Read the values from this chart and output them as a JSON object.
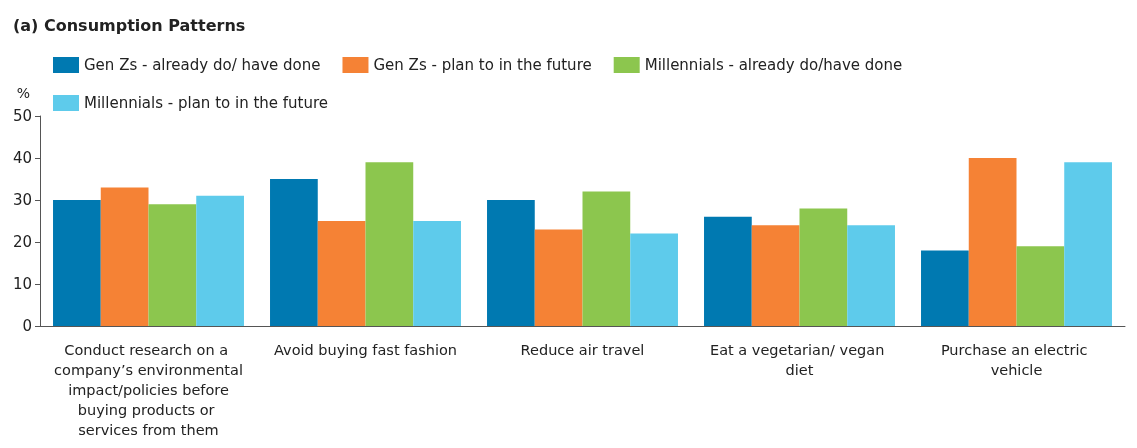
{
  "chart_data": {
    "type": "bar",
    "title": "(a) Consumption Patterns",
    "ylabel": "%",
    "categories": [
      "Conduct research on a company’s environmental impact/policies before buying products or services from them",
      "Avoid buying fast fashion",
      "Reduce air travel",
      "Eat a vegetarian/ vegan diet",
      "Purchase an electric vehicle"
    ],
    "series": [
      {
        "name": "Gen Zs - already do/ have done",
        "color": "#0079b1",
        "values": [
          30,
          35,
          30,
          26,
          18
        ]
      },
      {
        "name": "Gen Zs - plan to in the future",
        "color": "#f58235",
        "values": [
          33,
          25,
          23,
          24,
          40
        ]
      },
      {
        "name": "Millennials - already do/have done",
        "color": "#8cc64e",
        "values": [
          29,
          39,
          32,
          28,
          19
        ]
      },
      {
        "name": "Millennials - plan to in the future",
        "color": "#5ecbeb",
        "values": [
          31,
          25,
          22,
          24,
          39
        ]
      }
    ],
    "ylim": [
      0,
      50
    ],
    "yticks": [
      0,
      10,
      20,
      30,
      40,
      50
    ],
    "grid": false,
    "legend": "top left"
  }
}
